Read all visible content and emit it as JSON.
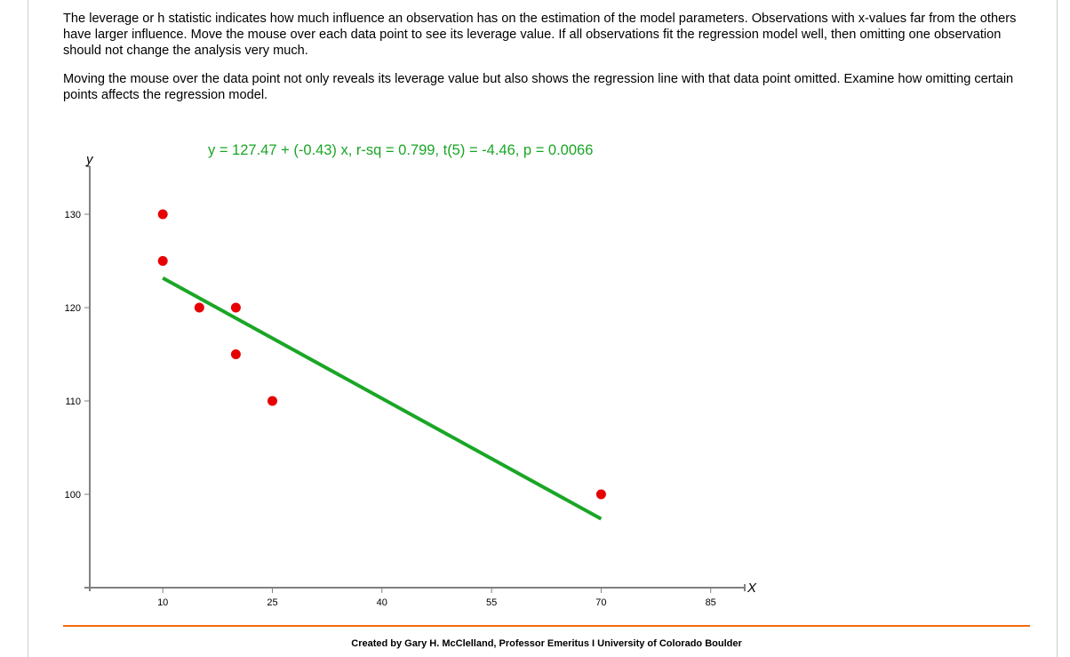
{
  "intro": {
    "paragraph1": "The leverage or h statistic indicates how much influence an observation has on the estimation of the model parameters. Observations with x-values far from the others have larger influence. Move the mouse over each data point to see its leverage value. If all observations fit the regression model well, then omitting one observation should not change the analysis very much.",
    "paragraph2": "Moving the mouse over the data point not only reveals its leverage value but also shows the regression line with that data point omitted. Examine how omitting certain points affects the regression model."
  },
  "equation": "y = 127.47 + (-0.43) x, r-sq = 0.799, t(5) = -4.46, p = 0.0066",
  "footer": {
    "credit": "Created by Gary H. McClelland, Professor Emeritus I University of Colorado Boulder"
  },
  "colors": {
    "points": "#e60000",
    "regression_line": "#1aa626",
    "equation_text": "#1aa626",
    "axis": "#808080",
    "footer_rule": "#f26a10"
  },
  "chart_data": {
    "type": "scatter",
    "title": "y = 127.47 + (-0.43) x, r-sq = 0.799, t(5) = -4.46, p = 0.0066",
    "xlabel": "X",
    "ylabel": "y",
    "x_ticks": [
      "10",
      "25",
      "40",
      "55",
      "70",
      "85"
    ],
    "y_ticks": [
      "100",
      "110",
      "120",
      "130"
    ],
    "xlim": [
      0,
      90
    ],
    "ylim": [
      90,
      135
    ],
    "grid": false,
    "points": [
      {
        "x": 10,
        "y": 130
      },
      {
        "x": 10,
        "y": 125
      },
      {
        "x": 15,
        "y": 120
      },
      {
        "x": 20,
        "y": 120
      },
      {
        "x": 20,
        "y": 115
      },
      {
        "x": 25,
        "y": 110
      },
      {
        "x": 70,
        "y": 100
      }
    ],
    "regression": {
      "intercept": 127.47,
      "slope": -0.43,
      "r_sq": 0.799,
      "t": -4.46,
      "df": 5,
      "p": 0.0066,
      "x_range": [
        10,
        70
      ]
    }
  }
}
